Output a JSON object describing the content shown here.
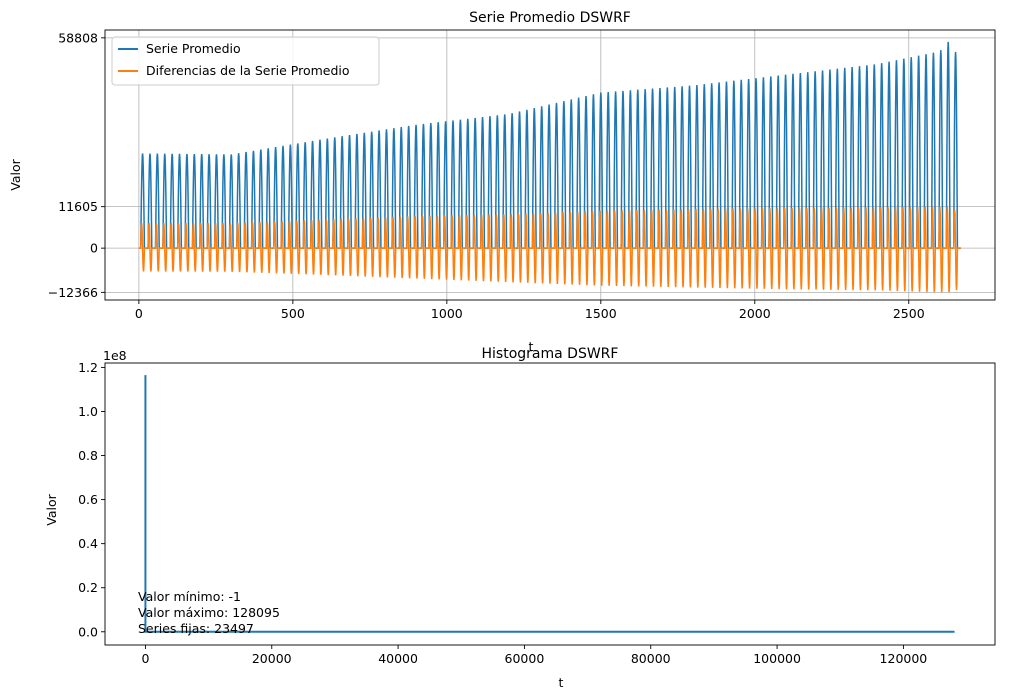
{
  "chart_data": [
    {
      "type": "line",
      "title": "Serie Promedio DSWRF",
      "xlabel": "t",
      "ylabel": "Valor",
      "xlim": [
        -110,
        2780
      ],
      "ylim": [
        -14500,
        61000
      ],
      "xticks": [
        0,
        500,
        1000,
        1500,
        2000,
        2500
      ],
      "yticks": [
        -12366,
        0,
        11605,
        58808
      ],
      "grid": true,
      "legend_position": "top-left",
      "n_points": 2670,
      "period": 24,
      "series": [
        {
          "name": "Serie Promedio",
          "color": "#1f77b4",
          "x": [
            0,
            300,
            600,
            900,
            1200,
            1500,
            1800,
            2100,
            2400,
            2600,
            2640,
            2670
          ],
          "peak_values": [
            26500,
            26200,
            30500,
            34500,
            37500,
            43500,
            45500,
            48500,
            51500,
            55000,
            58808,
            49000
          ],
          "min_value": 0
        },
        {
          "name": "Diferencias de la Serie Promedio",
          "color": "#ff7f0e",
          "x": [
            0,
            300,
            600,
            900,
            1200,
            1500,
            1800,
            2100,
            2400,
            2600,
            2640,
            2670
          ],
          "max_values": [
            7000,
            7000,
            8000,
            9000,
            9500,
            10500,
            11000,
            11200,
            11400,
            11605,
            11605,
            9000
          ],
          "min_values": [
            -6500,
            -6600,
            -7500,
            -8500,
            -9500,
            -10500,
            -11000,
            -11500,
            -11800,
            -12366,
            -12366,
            -11000
          ]
        }
      ]
    },
    {
      "type": "line",
      "title": "Histograma DSWRF",
      "xlabel": "t",
      "ylabel": "Valor",
      "offset_label": "1e8",
      "xlim": [
        -6400,
        134500
      ],
      "ylim": [
        -0.06,
        1.22
      ],
      "xticks": [
        0,
        20000,
        40000,
        60000,
        80000,
        100000,
        120000
      ],
      "yticks": [
        0.0,
        0.2,
        0.4,
        0.6,
        0.8,
        1.0,
        1.2
      ],
      "grid": false,
      "series": [
        {
          "name": "",
          "color": "#1f77b4",
          "x": [
            0,
            1,
            2,
            128095
          ],
          "y": [
            1.165,
            0.0,
            0.0,
            0.0
          ]
        }
      ],
      "annotations": [
        "Valor mínimo: -1",
        "Valor máximo: 128095",
        "Series fijas: 23497"
      ]
    }
  ]
}
